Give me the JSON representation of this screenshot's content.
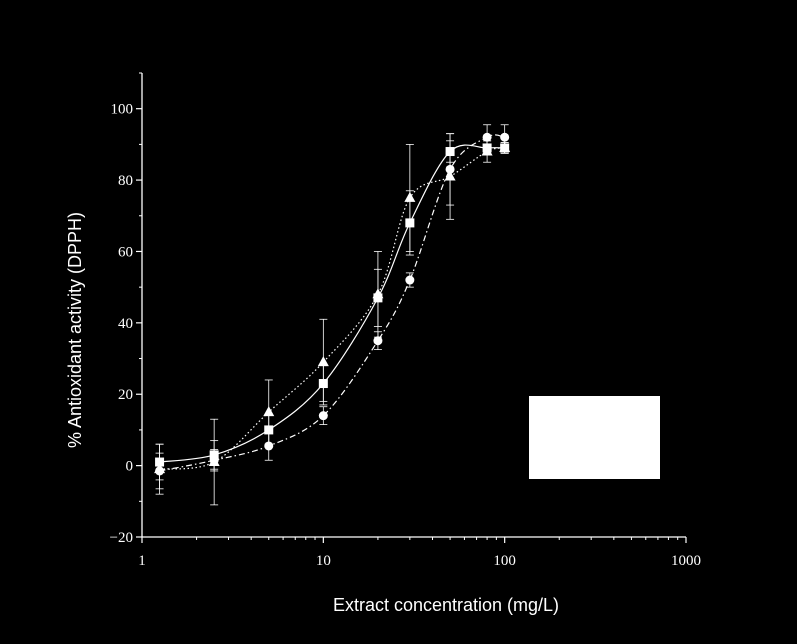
{
  "chart_data": {
    "type": "line",
    "xscale": "log",
    "xlim": [
      1,
      1000
    ],
    "ylim": [
      -20,
      110
    ],
    "xlabel": "Extract concentration (mg/L)",
    "ylabel": "% Antioxidant activity (DPPH)",
    "xticks": [
      1,
      10,
      100,
      1000
    ],
    "xtick_labels": [
      "1",
      "10",
      "100",
      "1000"
    ],
    "yticks": [
      -20,
      0,
      20,
      40,
      60,
      80,
      100
    ],
    "ytick_labels": [
      "−20",
      "0",
      "20",
      "40",
      "60",
      "80",
      "100"
    ],
    "legend": "box at lower-right (contents not visible)",
    "grid": false,
    "series": [
      {
        "marker": "square",
        "line_style": "solid",
        "points": [
          {
            "x": 1.25,
            "y": 1.0,
            "err": 5.0
          },
          {
            "x": 2.5,
            "y": 3.0,
            "err": 4.0
          },
          {
            "x": 5,
            "y": 10.0,
            "err": 4.0
          },
          {
            "x": 10,
            "y": 23.0,
            "err": 5.0
          },
          {
            "x": 20,
            "y": 47.0,
            "err": 8.0
          },
          {
            "x": 30,
            "y": 68.0,
            "err": 9.0
          },
          {
            "x": 50,
            "y": 88.0,
            "err": 3.0
          },
          {
            "x": 80,
            "y": 89.0,
            "err": 2.0
          },
          {
            "x": 100,
            "y": 89.0,
            "err": 1.5
          }
        ]
      },
      {
        "marker": "triangle",
        "line_style": "dotted",
        "points": [
          {
            "x": 1.25,
            "y": -1.0,
            "err": 7.0
          },
          {
            "x": 2.5,
            "y": 1.0,
            "err": 12.0
          },
          {
            "x": 5,
            "y": 15.0,
            "err": 9.0
          },
          {
            "x": 10,
            "y": 29.0,
            "err": 12.0
          },
          {
            "x": 20,
            "y": 48.0,
            "err": 12.0
          },
          {
            "x": 30,
            "y": 75.0,
            "err": 15.0
          },
          {
            "x": 50,
            "y": 81.0,
            "err": 12.0
          },
          {
            "x": 80,
            "y": 88.0,
            "err": 3.0
          },
          {
            "x": 100,
            "y": 89.0,
            "err": 1.5
          }
        ]
      },
      {
        "marker": "circle",
        "line_style": "dash-dot",
        "points": [
          {
            "x": 1.25,
            "y": -1.5,
            "err": 5.0
          },
          {
            "x": 2.5,
            "y": 1.5,
            "err": 3.0
          },
          {
            "x": 5,
            "y": 5.5,
            "err": 4.0
          },
          {
            "x": 10,
            "y": 14.0,
            "err": 2.5
          },
          {
            "x": 20,
            "y": 35.0,
            "err": 2.5
          },
          {
            "x": 30,
            "y": 52.0,
            "err": 2.0
          },
          {
            "x": 50,
            "y": 83.0,
            "err": 10.0
          },
          {
            "x": 80,
            "y": 92.0,
            "err": 3.5
          },
          {
            "x": 100,
            "y": 92.0,
            "err": 3.5
          }
        ]
      }
    ]
  }
}
